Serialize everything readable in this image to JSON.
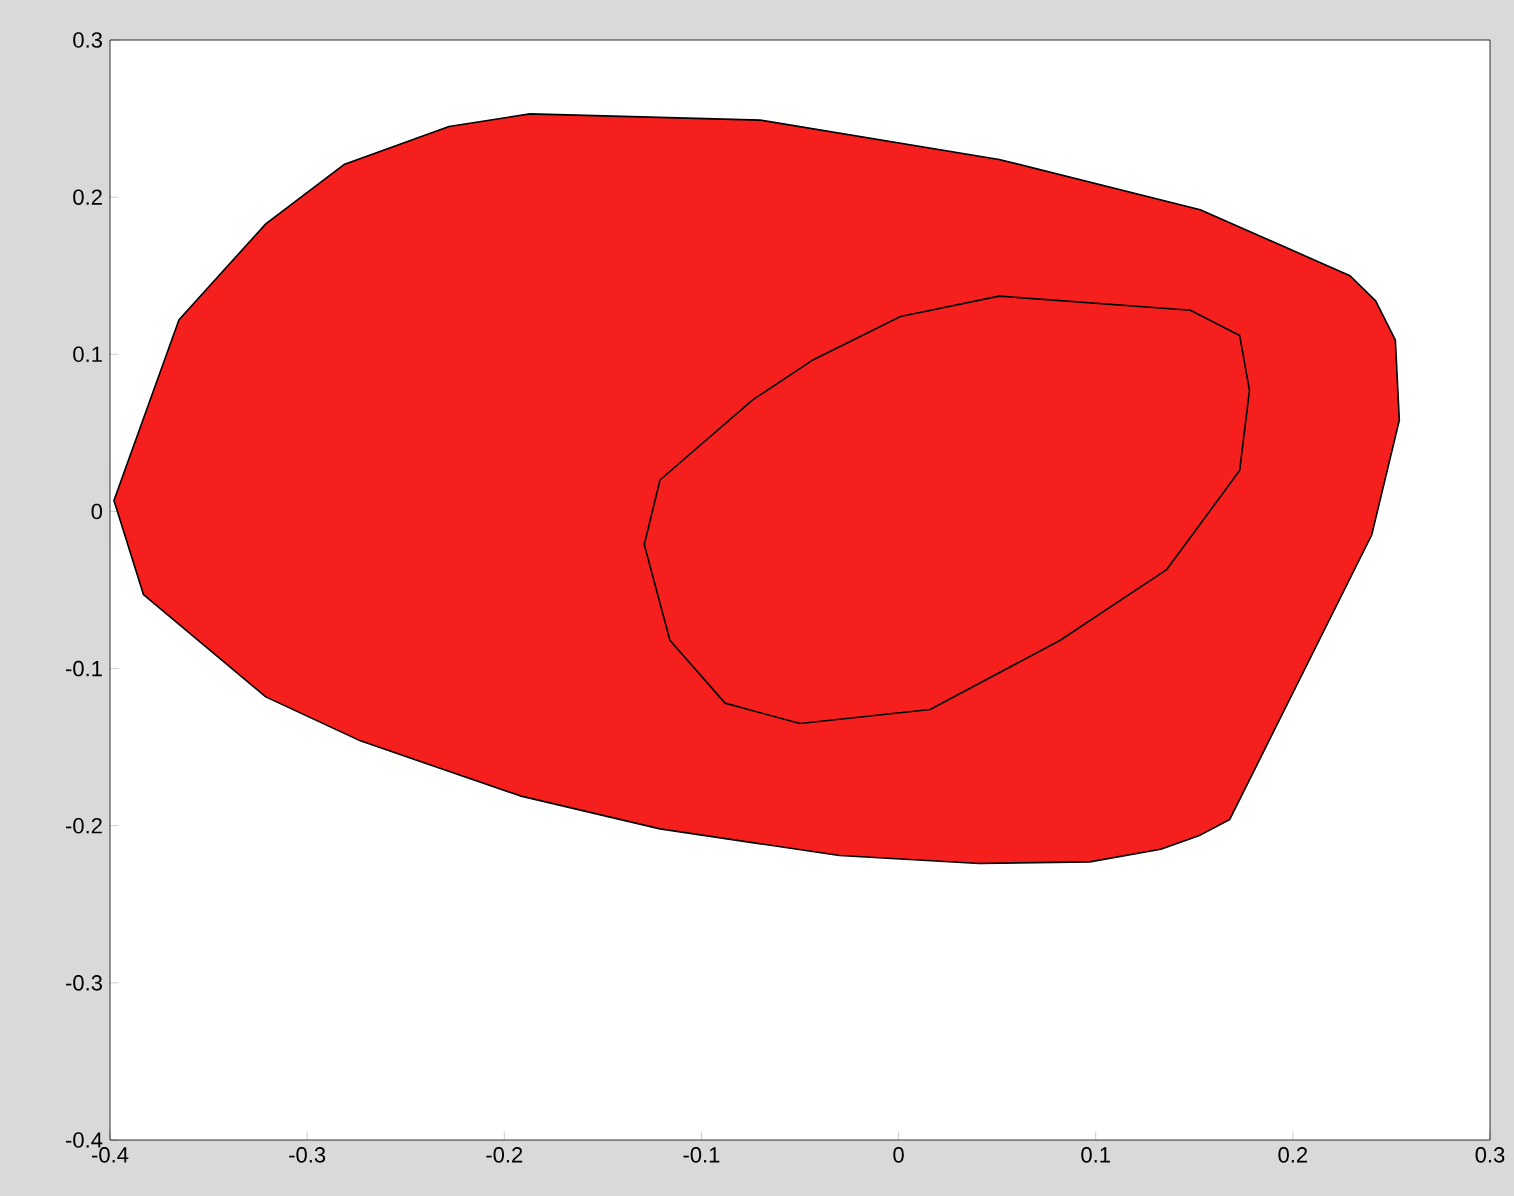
{
  "chart_data": {
    "type": "area",
    "xlim": [
      -0.4,
      0.3
    ],
    "ylim": [
      -0.4,
      0.3
    ],
    "xticks": [
      -0.4,
      -0.3,
      -0.2,
      -0.1,
      0,
      0.1,
      0.2,
      0.3
    ],
    "yticks": [
      -0.4,
      -0.3,
      -0.2,
      -0.1,
      0,
      0.1,
      0.2,
      0.3
    ],
    "series": [
      {
        "color": "#f5201e",
        "x": [
          -0.398,
          -0.383,
          -0.321,
          -0.273,
          -0.192,
          -0.121,
          -0.03,
          0.041,
          0.097,
          0.133,
          0.153,
          0.168,
          0.24,
          0.254,
          0.252,
          0.242,
          0.229,
          0.153,
          0.051,
          -0.07,
          -0.187,
          -0.228,
          -0.281,
          -0.321,
          -0.365,
          -0.398
        ],
        "values": [
          0.007,
          -0.053,
          -0.118,
          -0.146,
          -0.181,
          -0.202,
          -0.219,
          -0.224,
          -0.223,
          -0.215,
          -0.206,
          -0.196,
          -0.015,
          0.058,
          0.109,
          0.134,
          0.15,
          0.192,
          0.224,
          0.249,
          0.253,
          0.245,
          0.221,
          0.183,
          0.122,
          0.007
        ]
      },
      {
        "color": "#f5201e",
        "x": [
          -0.121,
          -0.129,
          -0.116,
          -0.088,
          -0.05,
          0.016,
          0.082,
          0.136,
          0.173,
          0.178,
          0.173,
          0.148,
          0.051,
          0.001,
          -0.044,
          -0.074,
          -0.121
        ],
        "values": [
          0.02,
          -0.021,
          -0.082,
          -0.122,
          -0.135,
          -0.126,
          -0.082,
          -0.037,
          0.026,
          0.077,
          0.112,
          0.128,
          0.137,
          0.124,
          0.096,
          0.071,
          0.02
        ]
      }
    ]
  }
}
